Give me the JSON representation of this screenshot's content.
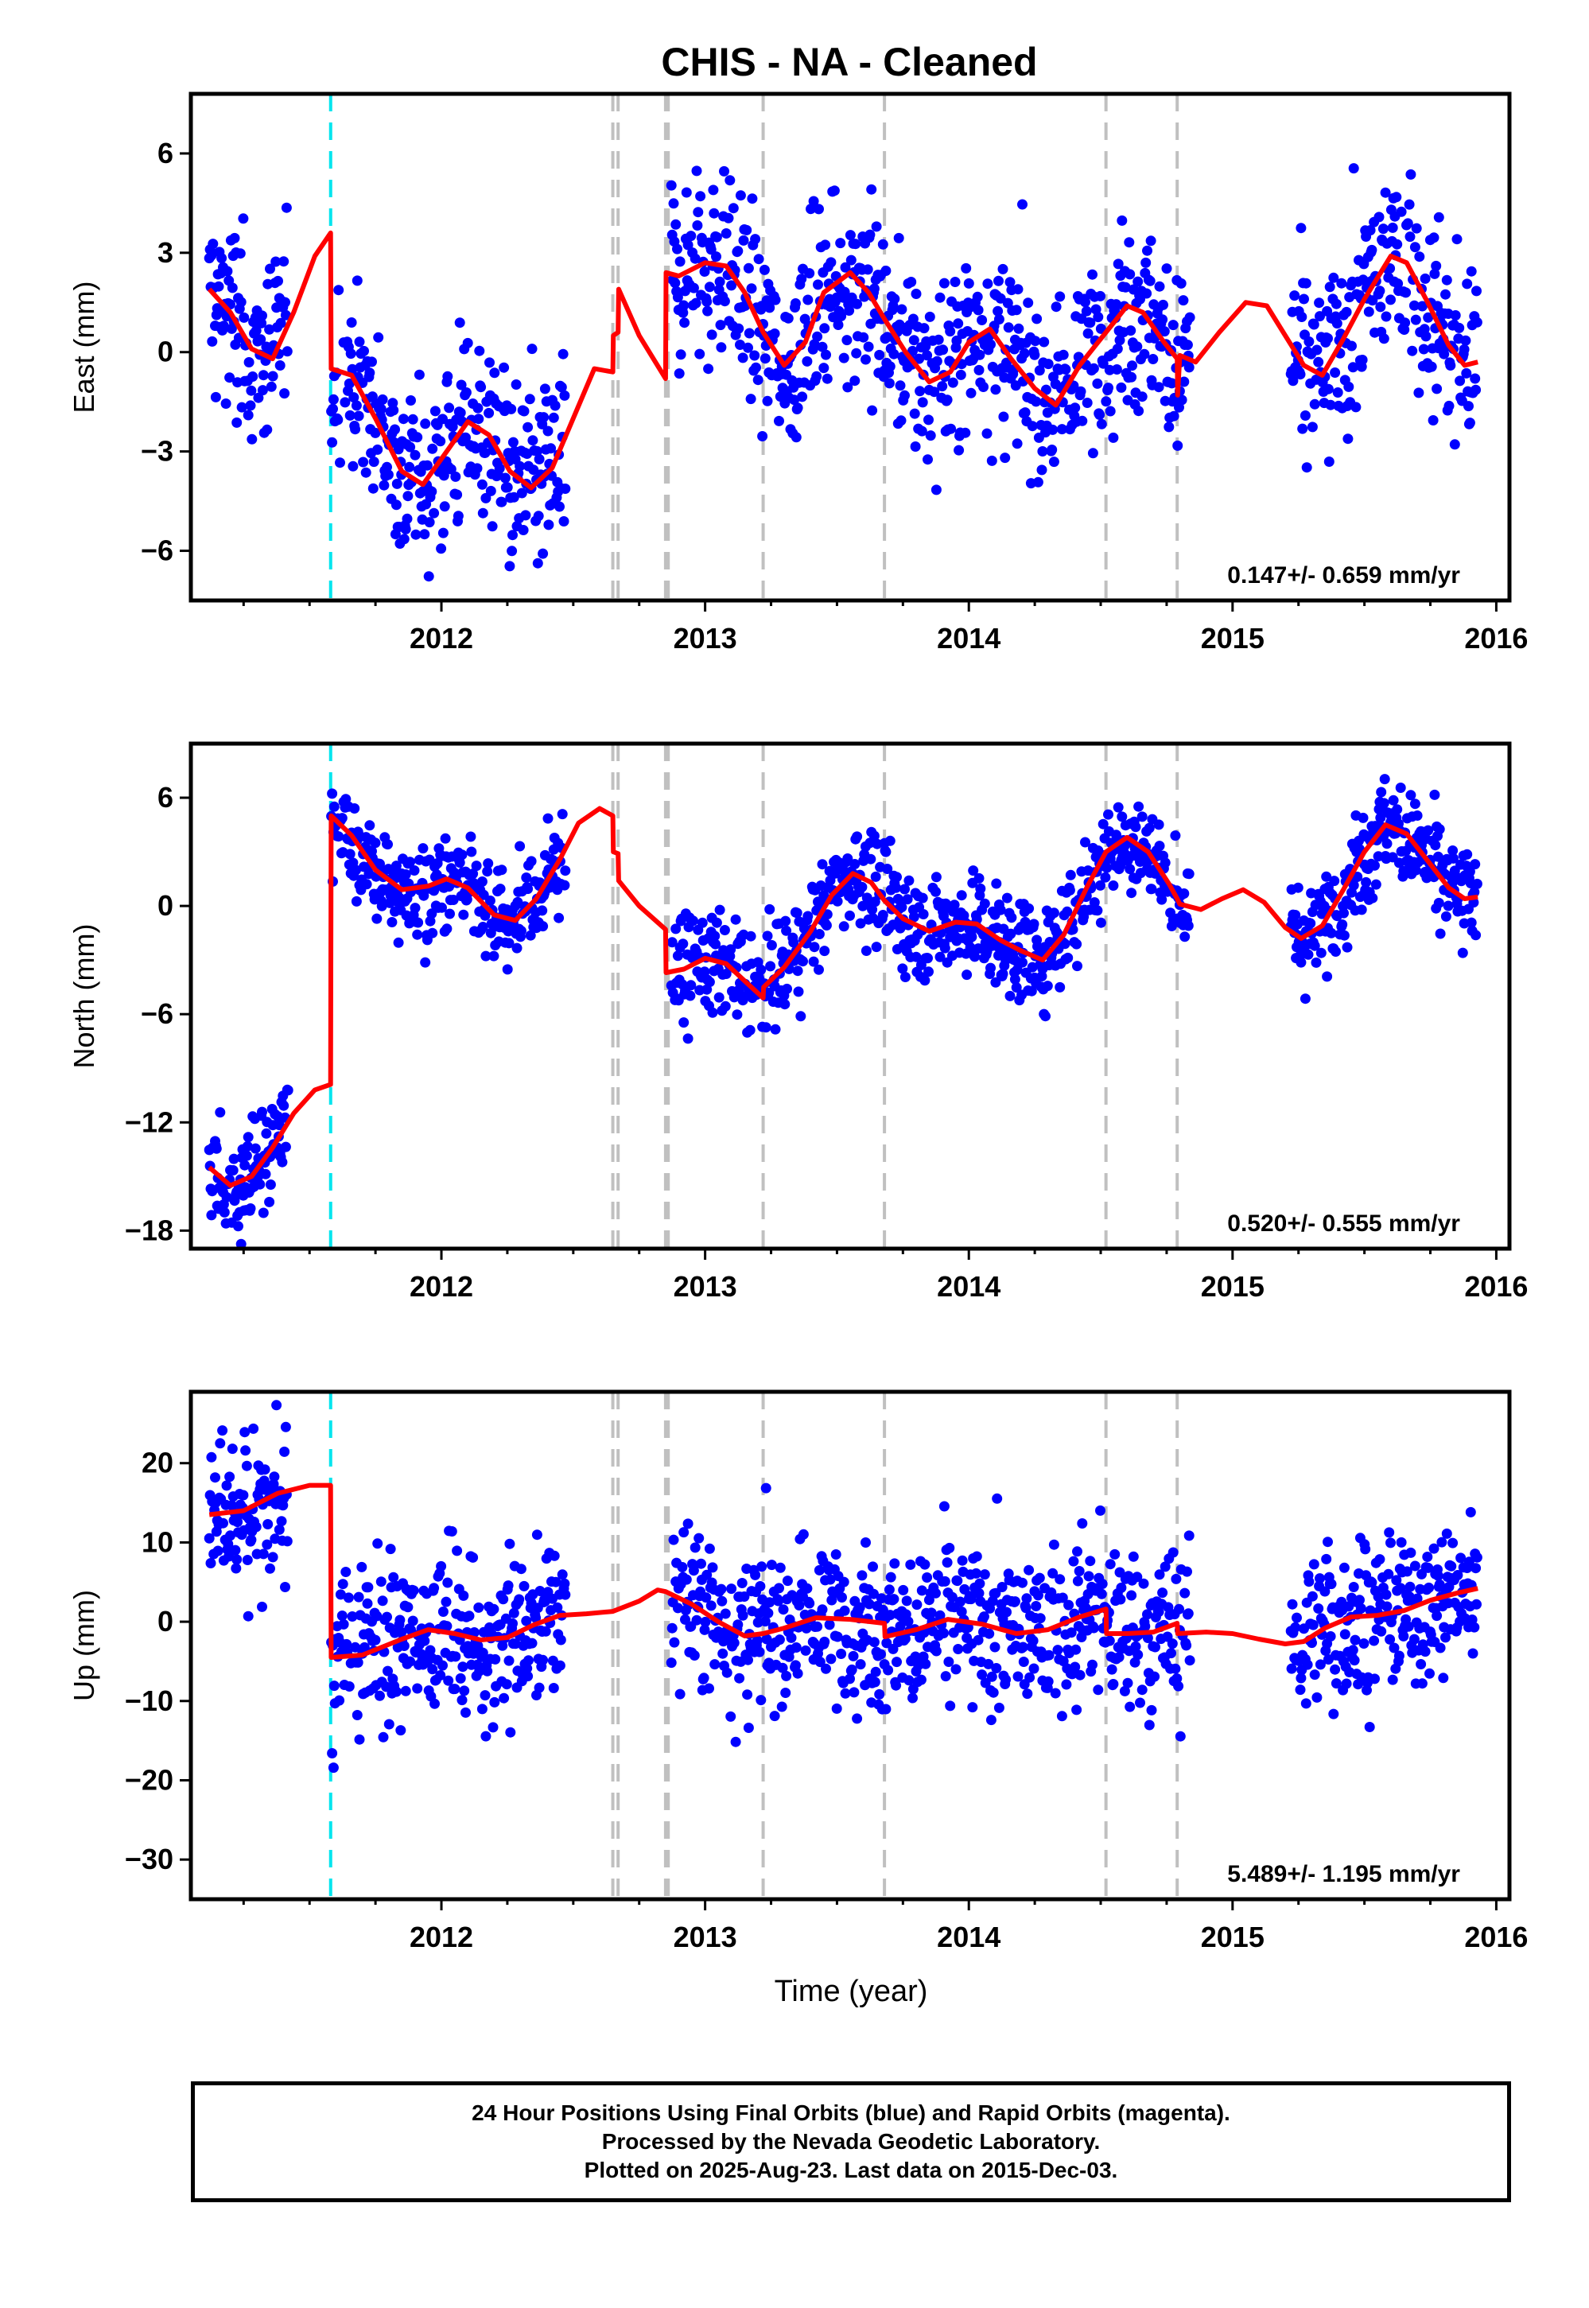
{
  "chart_data": {
    "type": "scatter",
    "title": "CHIS  - NA - Cleaned",
    "xlabel": "Time (year)",
    "xlim": [
      2011.05,
      2016.05
    ],
    "x_ticks": [
      2012,
      2013,
      2014,
      2015,
      2016
    ],
    "x_tick_labels": [
      "2012",
      "2013",
      "2014",
      "2015",
      "2016"
    ],
    "grid": false,
    "marker_color": "#0000ff",
    "model_color": "#ff0000",
    "equipment_change_color": "#00e5ee",
    "event_line_color": "#c0c0c0",
    "equipment_change_epochs": [
      2011.58
    ],
    "event_epochs": [
      2012.65,
      2012.67,
      2012.85,
      2012.86,
      2013.22,
      2013.68,
      2014.52,
      2014.79
    ],
    "data_gaps": [
      [
        2011.42,
        2011.58
      ],
      [
        2012.47,
        2012.87
      ],
      [
        2014.84,
        2015.22
      ]
    ],
    "panels": [
      {
        "ylabel": "East (mm)",
        "ylim": [
          -7.5,
          7.8
        ],
        "y_ticks": [
          -6,
          -3,
          0,
          3,
          6
        ],
        "y_tick_labels": [
          "−6",
          "−3",
          "0",
          "3",
          "6"
        ],
        "rate": "0.147+/- 0.659 mm/yr",
        "scatter_level": 1.45,
        "model": [
          [
            2011.12,
            1.9
          ],
          [
            2011.2,
            1.2
          ],
          [
            2011.28,
            0.1
          ],
          [
            2011.36,
            -0.2
          ],
          [
            2011.44,
            1.2
          ],
          [
            2011.52,
            2.9
          ],
          [
            2011.58,
            3.6
          ],
          [
            2011.582,
            -0.5
          ],
          [
            2011.66,
            -0.7
          ],
          [
            2011.75,
            -2.0
          ],
          [
            2011.85,
            -3.6
          ],
          [
            2011.93,
            -4.0
          ],
          [
            2012.02,
            -3.0
          ],
          [
            2012.1,
            -2.1
          ],
          [
            2012.18,
            -2.5
          ],
          [
            2012.26,
            -3.6
          ],
          [
            2012.34,
            -4.1
          ],
          [
            2012.42,
            -3.5
          ],
          [
            2012.5,
            -2.0
          ],
          [
            2012.58,
            -0.5
          ],
          [
            2012.65,
            -0.6
          ],
          [
            2012.652,
            0.5
          ],
          [
            2012.67,
            0.6
          ],
          [
            2012.672,
            1.9
          ],
          [
            2012.75,
            0.5
          ],
          [
            2012.85,
            -0.8
          ],
          [
            2012.852,
            2.4
          ],
          [
            2012.9,
            2.3
          ],
          [
            2013.0,
            2.7
          ],
          [
            2013.08,
            2.6
          ],
          [
            2013.15,
            1.8
          ],
          [
            2013.22,
            0.6
          ],
          [
            2013.3,
            -0.4
          ],
          [
            2013.38,
            0.3
          ],
          [
            2013.45,
            1.8
          ],
          [
            2013.55,
            2.4
          ],
          [
            2013.62,
            1.8
          ],
          [
            2013.68,
            1.0
          ],
          [
            2013.76,
            0.0
          ],
          [
            2013.85,
            -0.9
          ],
          [
            2013.93,
            -0.6
          ],
          [
            2014.0,
            0.3
          ],
          [
            2014.08,
            0.7
          ],
          [
            2014.16,
            -0.2
          ],
          [
            2014.25,
            -1.1
          ],
          [
            2014.33,
            -1.6
          ],
          [
            2014.42,
            -0.4
          ],
          [
            2014.52,
            0.6
          ],
          [
            2014.6,
            1.4
          ],
          [
            2014.66,
            1.2
          ],
          [
            2014.74,
            0.3
          ],
          [
            2014.79,
            -0.2
          ],
          [
            2014.792,
            -1.3
          ],
          [
            2014.8,
            -0.1
          ],
          [
            2014.86,
            -0.3
          ],
          [
            2014.95,
            0.6
          ],
          [
            2015.05,
            1.5
          ],
          [
            2015.13,
            1.4
          ],
          [
            2015.2,
            0.5
          ],
          [
            2015.27,
            -0.4
          ],
          [
            2015.34,
            -0.7
          ],
          [
            2015.42,
            0.4
          ],
          [
            2015.5,
            1.6
          ],
          [
            2015.6,
            2.9
          ],
          [
            2015.66,
            2.7
          ],
          [
            2015.74,
            1.5
          ],
          [
            2015.82,
            0.2
          ],
          [
            2015.88,
            -0.4
          ],
          [
            2015.93,
            -0.3
          ]
        ]
      },
      {
        "ylabel": "North (mm)",
        "ylim": [
          -19,
          9
        ],
        "y_ticks": [
          -18,
          -12,
          -6,
          0,
          6
        ],
        "y_tick_labels": [
          "−18",
          "−12",
          "−6",
          "0",
          "6"
        ],
        "rate": "0.520+/- 0.555 mm/yr",
        "scatter_level": 1.5,
        "model": [
          [
            2011.12,
            -14.5
          ],
          [
            2011.2,
            -15.5
          ],
          [
            2011.28,
            -15.0
          ],
          [
            2011.36,
            -13.4
          ],
          [
            2011.44,
            -11.5
          ],
          [
            2011.52,
            -10.2
          ],
          [
            2011.58,
            -9.9
          ],
          [
            2011.582,
            5.0
          ],
          [
            2011.66,
            3.9
          ],
          [
            2011.75,
            2.0
          ],
          [
            2011.85,
            0.9
          ],
          [
            2011.95,
            1.1
          ],
          [
            2012.02,
            1.5
          ],
          [
            2012.1,
            1.0
          ],
          [
            2012.2,
            -0.5
          ],
          [
            2012.28,
            -0.8
          ],
          [
            2012.36,
            0.4
          ],
          [
            2012.45,
            2.6
          ],
          [
            2012.52,
            4.6
          ],
          [
            2012.6,
            5.4
          ],
          [
            2012.65,
            5.0
          ],
          [
            2012.652,
            3.0
          ],
          [
            2012.67,
            2.9
          ],
          [
            2012.672,
            1.4
          ],
          [
            2012.75,
            0.0
          ],
          [
            2012.85,
            -1.3
          ],
          [
            2012.852,
            -3.7
          ],
          [
            2012.92,
            -3.5
          ],
          [
            2013.0,
            -2.9
          ],
          [
            2013.08,
            -3.2
          ],
          [
            2013.16,
            -4.3
          ],
          [
            2013.22,
            -5.1
          ],
          [
            2013.222,
            -4.5
          ],
          [
            2013.3,
            -3.4
          ],
          [
            2013.4,
            -1.4
          ],
          [
            2013.48,
            0.6
          ],
          [
            2013.56,
            1.8
          ],
          [
            2013.63,
            1.3
          ],
          [
            2013.68,
            0.3
          ],
          [
            2013.75,
            -0.7
          ],
          [
            2013.85,
            -1.4
          ],
          [
            2013.95,
            -0.9
          ],
          [
            2014.03,
            -1.0
          ],
          [
            2014.12,
            -1.9
          ],
          [
            2014.2,
            -2.5
          ],
          [
            2014.28,
            -3.0
          ],
          [
            2014.36,
            -1.6
          ],
          [
            2014.45,
            1.1
          ],
          [
            2014.52,
            3.0
          ],
          [
            2014.6,
            3.8
          ],
          [
            2014.68,
            3.0
          ],
          [
            2014.76,
            1.2
          ],
          [
            2014.79,
            0.4
          ],
          [
            2014.8,
            0.1
          ],
          [
            2014.88,
            -0.2
          ],
          [
            2014.96,
            0.4
          ],
          [
            2015.04,
            0.9
          ],
          [
            2015.12,
            0.2
          ],
          [
            2015.2,
            -1.2
          ],
          [
            2015.26,
            -1.8
          ],
          [
            2015.34,
            -1.1
          ],
          [
            2015.42,
            0.9
          ],
          [
            2015.5,
            3.0
          ],
          [
            2015.58,
            4.5
          ],
          [
            2015.66,
            4.0
          ],
          [
            2015.74,
            2.5
          ],
          [
            2015.82,
            1.0
          ],
          [
            2015.88,
            0.4
          ],
          [
            2015.93,
            0.5
          ]
        ]
      },
      {
        "ylabel": "Up (mm)",
        "ylim": [
          -35,
          29
        ],
        "y_ticks": [
          -30,
          -20,
          -10,
          0,
          10,
          20
        ],
        "y_tick_labels": [
          "−30",
          "−20",
          "−10",
          "0",
          "10",
          "20"
        ],
        "rate": "5.489+/- 1.195 mm/yr",
        "scatter_level": 5.2,
        "model": [
          [
            2011.12,
            13.5
          ],
          [
            2011.25,
            14.0
          ],
          [
            2011.38,
            16.2
          ],
          [
            2011.5,
            17.2
          ],
          [
            2011.58,
            17.2
          ],
          [
            2011.582,
            -4.5
          ],
          [
            2011.7,
            -4.2
          ],
          [
            2011.85,
            -2.2
          ],
          [
            2011.95,
            -1.0
          ],
          [
            2012.05,
            -1.5
          ],
          [
            2012.15,
            -2.3
          ],
          [
            2012.25,
            -2.0
          ],
          [
            2012.35,
            -0.4
          ],
          [
            2012.45,
            0.8
          ],
          [
            2012.55,
            1.0
          ],
          [
            2012.65,
            1.3
          ],
          [
            2012.75,
            2.6
          ],
          [
            2012.82,
            4.0
          ],
          [
            2012.85,
            3.8
          ],
          [
            2012.95,
            2.2
          ],
          [
            2013.05,
            0.0
          ],
          [
            2013.15,
            -1.8
          ],
          [
            2013.22,
            -1.5
          ],
          [
            2013.3,
            -0.8
          ],
          [
            2013.42,
            0.5
          ],
          [
            2013.55,
            0.3
          ],
          [
            2013.68,
            -0.2
          ],
          [
            2013.682,
            -1.9
          ],
          [
            2013.8,
            -1.0
          ],
          [
            2013.92,
            0.3
          ],
          [
            2014.05,
            -0.3
          ],
          [
            2014.18,
            -1.5
          ],
          [
            2014.3,
            -1.0
          ],
          [
            2014.42,
            0.6
          ],
          [
            2014.52,
            1.6
          ],
          [
            2014.522,
            -1.5
          ],
          [
            2014.6,
            -1.5
          ],
          [
            2014.7,
            -1.3
          ],
          [
            2014.79,
            -0.2
          ],
          [
            2014.792,
            -1.5
          ],
          [
            2014.9,
            -1.3
          ],
          [
            2015.0,
            -1.5
          ],
          [
            2015.1,
            -2.2
          ],
          [
            2015.2,
            -2.8
          ],
          [
            2015.27,
            -2.5
          ],
          [
            2015.35,
            -0.8
          ],
          [
            2015.45,
            0.6
          ],
          [
            2015.55,
            0.8
          ],
          [
            2015.65,
            1.4
          ],
          [
            2015.75,
            2.7
          ],
          [
            2015.85,
            3.6
          ],
          [
            2015.93,
            4.2
          ]
        ]
      }
    ]
  },
  "footer": {
    "line1": "24 Hour Positions Using Final Orbits (blue) and Rapid Orbits (magenta).",
    "line2": "Processed by the Nevada Geodetic Laboratory.",
    "line3": "Plotted on 2025-Aug-23. Last data on 2015-Dec-03."
  }
}
